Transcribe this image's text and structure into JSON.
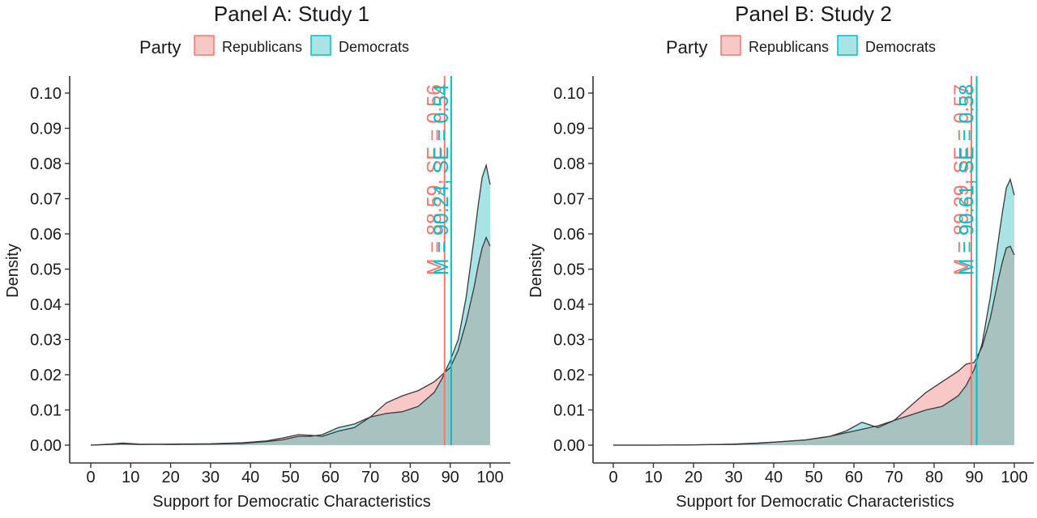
{
  "figure": {
    "colors": {
      "republicans": "#f8766d",
      "democrats": "#00bfc4",
      "republicans_fill": "#f8c8c6",
      "democrats_fill": "#a9e3e6",
      "overlap_fill": "#a7c2bf",
      "axis": "#333333",
      "text": "#1a1a1a"
    }
  },
  "chart_data": [
    {
      "type": "area",
      "title": "Panel A: Study 1",
      "xlabel": "Support for Democratic Characteristics",
      "ylabel": "Density",
      "xlim": [
        0,
        100
      ],
      "ylim": [
        0,
        0.1
      ],
      "x_ticks": [
        0,
        10,
        20,
        30,
        40,
        50,
        60,
        70,
        80,
        90,
        100
      ],
      "x_tick_labels": [
        "0",
        "10",
        "20",
        "30",
        "40",
        "50",
        "60",
        "70",
        "80",
        "90",
        "100"
      ],
      "y_ticks": [
        0,
        0.01,
        0.02,
        0.03,
        0.04,
        0.05,
        0.06,
        0.07,
        0.08,
        0.09,
        0.1
      ],
      "y_tick_labels": [
        "0.00",
        "0.01",
        "0.02",
        "0.03",
        "0.04",
        "0.05",
        "0.06",
        "0.07",
        "0.08",
        "0.09",
        "0.10"
      ],
      "grid": false,
      "legend": {
        "title": "Party",
        "position": "top",
        "entries": [
          "Republicans",
          "Democrats"
        ]
      },
      "series": [
        {
          "name": "Republicans",
          "x": [
            0,
            5,
            8,
            12,
            20,
            30,
            38,
            44,
            48,
            52,
            55,
            58,
            62,
            66,
            70,
            74,
            78,
            82,
            86,
            88,
            90,
            92,
            94,
            96,
            97,
            98,
            99,
            100
          ],
          "y": [
            0.0,
            0.0002,
            0.0004,
            0.0002,
            0.0003,
            0.0004,
            0.0007,
            0.0012,
            0.002,
            0.003,
            0.0028,
            0.0025,
            0.004,
            0.005,
            0.008,
            0.012,
            0.014,
            0.0155,
            0.018,
            0.02,
            0.022,
            0.027,
            0.035,
            0.045,
            0.051,
            0.056,
            0.059,
            0.0565
          ],
          "mean_label": "M = 88.59, SE = 0.56",
          "mean": 88.59
        },
        {
          "name": "Democrats",
          "x": [
            0,
            5,
            8,
            12,
            20,
            30,
            38,
            44,
            48,
            52,
            55,
            58,
            62,
            66,
            70,
            74,
            78,
            82,
            86,
            88,
            90,
            92,
            94,
            96,
            97,
            98,
            99,
            100
          ],
          "y": [
            0.0,
            0.0003,
            0.0006,
            0.0003,
            0.0002,
            0.0003,
            0.0005,
            0.001,
            0.0015,
            0.0025,
            0.0025,
            0.003,
            0.005,
            0.006,
            0.008,
            0.009,
            0.0095,
            0.011,
            0.015,
            0.019,
            0.024,
            0.03,
            0.042,
            0.059,
            0.068,
            0.076,
            0.0795,
            0.074
          ],
          "mean_label": "M = 90.24, SE = 0.54",
          "mean": 90.24
        }
      ]
    },
    {
      "type": "area",
      "title": "Panel B: Study 2",
      "xlabel": "Support for Democratic Characteristics",
      "ylabel": "Density",
      "xlim": [
        0,
        100
      ],
      "ylim": [
        0,
        0.1
      ],
      "x_ticks": [
        0,
        10,
        20,
        30,
        40,
        50,
        60,
        70,
        80,
        90,
        100
      ],
      "x_tick_labels": [
        "0",
        "10",
        "20",
        "30",
        "40",
        "50",
        "60",
        "70",
        "80",
        "90",
        "100"
      ],
      "y_ticks": [
        0,
        0.01,
        0.02,
        0.03,
        0.04,
        0.05,
        0.06,
        0.07,
        0.08,
        0.09,
        0.1
      ],
      "y_tick_labels": [
        "0.00",
        "0.01",
        "0.02",
        "0.03",
        "0.04",
        "0.05",
        "0.06",
        "0.07",
        "0.08",
        "0.09",
        "0.10"
      ],
      "grid": false,
      "legend": {
        "title": "Party",
        "position": "top",
        "entries": [
          "Republicans",
          "Democrats"
        ]
      },
      "series": [
        {
          "name": "Republicans",
          "x": [
            0,
            10,
            20,
            30,
            36,
            42,
            48,
            54,
            58,
            62,
            66,
            70,
            74,
            78,
            82,
            86,
            88,
            90,
            92,
            94,
            96,
            97,
            98,
            99,
            100
          ],
          "y": [
            0.0,
            0.0,
            0.0001,
            0.0003,
            0.0006,
            0.001,
            0.0015,
            0.0025,
            0.0035,
            0.0045,
            0.0055,
            0.007,
            0.011,
            0.015,
            0.018,
            0.021,
            0.023,
            0.0235,
            0.028,
            0.036,
            0.047,
            0.052,
            0.056,
            0.0565,
            0.054
          ],
          "mean_label": "M = 89.29, SE = 0.57",
          "mean": 89.29
        },
        {
          "name": "Democrats",
          "x": [
            0,
            10,
            20,
            30,
            36,
            42,
            48,
            54,
            58,
            62,
            66,
            70,
            74,
            78,
            82,
            86,
            88,
            90,
            92,
            94,
            96,
            97,
            98,
            99,
            100
          ],
          "y": [
            0.0,
            0.0,
            0.0001,
            0.0002,
            0.0005,
            0.001,
            0.0015,
            0.0025,
            0.004,
            0.0065,
            0.005,
            0.007,
            0.0085,
            0.01,
            0.011,
            0.014,
            0.017,
            0.0215,
            0.029,
            0.042,
            0.058,
            0.066,
            0.073,
            0.0755,
            0.071
          ],
          "mean_label": "M = 90.61, SE = 0.58",
          "mean": 90.61
        }
      ]
    }
  ]
}
